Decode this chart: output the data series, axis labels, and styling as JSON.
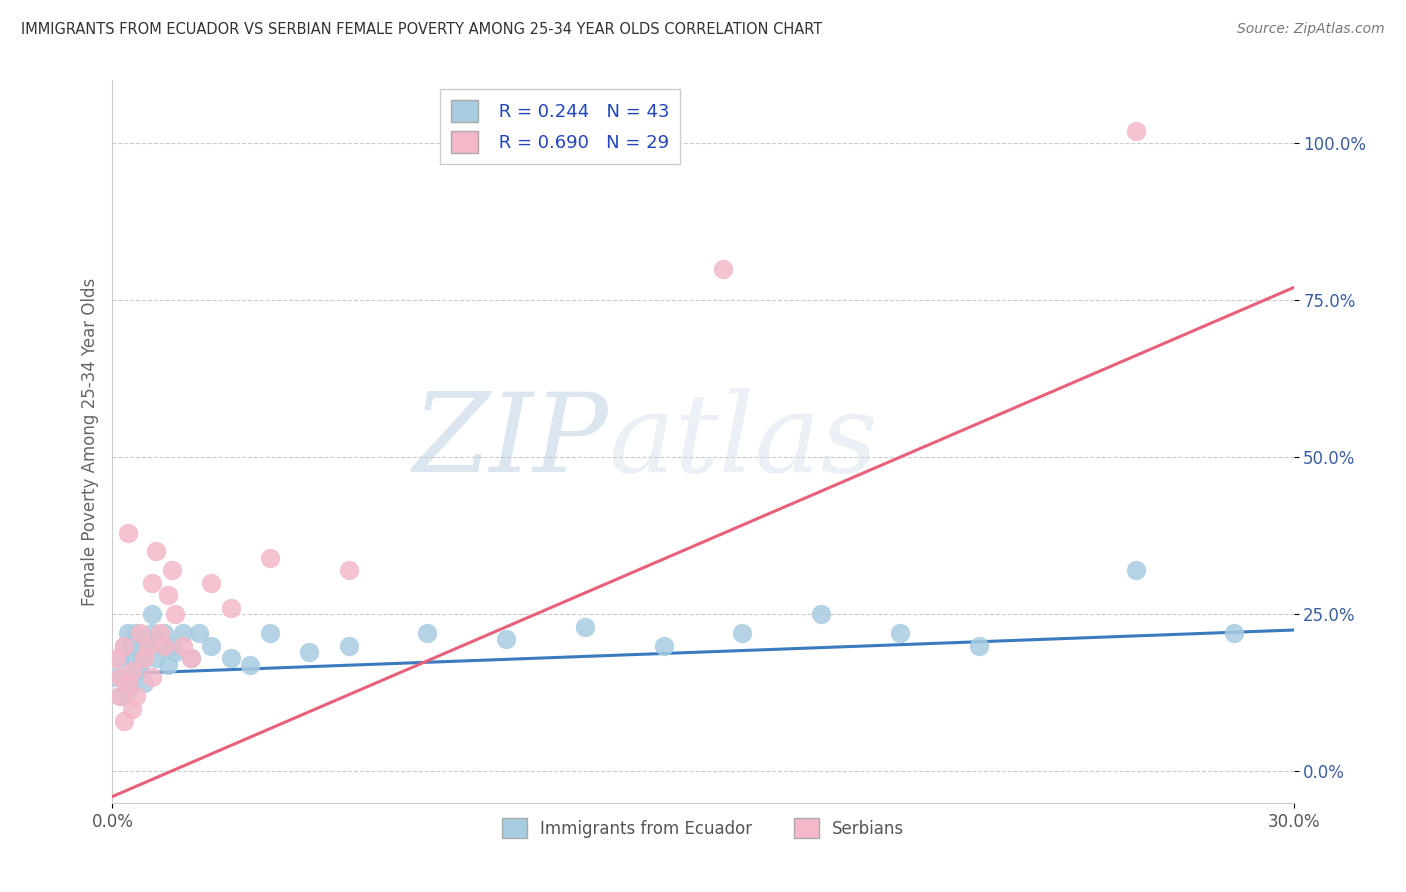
{
  "title": "IMMIGRANTS FROM ECUADOR VS SERBIAN FEMALE POVERTY AMONG 25-34 YEAR OLDS CORRELATION CHART",
  "source": "Source: ZipAtlas.com",
  "ylabel": "Female Poverty Among 25-34 Year Olds",
  "xlabel_blue": "Immigrants from Ecuador",
  "xlabel_pink": "Serbians",
  "xlim": [
    0.0,
    0.3
  ],
  "ylim": [
    -0.05,
    1.1
  ],
  "yticks": [
    0.0,
    0.25,
    0.5,
    0.75,
    1.0
  ],
  "ytick_labels": [
    "0.0%",
    "25.0%",
    "50.0%",
    "75.0%",
    "100.0%"
  ],
  "blue_R": 0.244,
  "blue_N": 43,
  "pink_R": 0.69,
  "pink_N": 29,
  "blue_color": "#a8cce0",
  "pink_color": "#f4b8c8",
  "blue_line_color": "#3a7bbf",
  "pink_line_color": "#e8607a",
  "blue_scatter_x": [
    0.001,
    0.002,
    0.002,
    0.003,
    0.003,
    0.004,
    0.004,
    0.005,
    0.005,
    0.006,
    0.006,
    0.007,
    0.007,
    0.008,
    0.008,
    0.009,
    0.01,
    0.01,
    0.011,
    0.012,
    0.013,
    0.014,
    0.015,
    0.016,
    0.018,
    0.02,
    0.022,
    0.025,
    0.03,
    0.035,
    0.04,
    0.05,
    0.06,
    0.08,
    0.1,
    0.12,
    0.14,
    0.16,
    0.18,
    0.2,
    0.22,
    0.26,
    0.285
  ],
  "blue_scatter_y": [
    0.15,
    0.18,
    0.12,
    0.2,
    0.15,
    0.22,
    0.13,
    0.18,
    0.2,
    0.16,
    0.22,
    0.19,
    0.17,
    0.21,
    0.14,
    0.2,
    0.22,
    0.25,
    0.18,
    0.2,
    0.22,
    0.17,
    0.2,
    0.19,
    0.22,
    0.18,
    0.22,
    0.2,
    0.18,
    0.17,
    0.22,
    0.19,
    0.2,
    0.22,
    0.21,
    0.23,
    0.2,
    0.22,
    0.25,
    0.22,
    0.2,
    0.32,
    0.22
  ],
  "pink_scatter_x": [
    0.001,
    0.002,
    0.002,
    0.003,
    0.003,
    0.004,
    0.004,
    0.005,
    0.005,
    0.006,
    0.007,
    0.008,
    0.009,
    0.01,
    0.01,
    0.011,
    0.012,
    0.013,
    0.014,
    0.015,
    0.016,
    0.018,
    0.02,
    0.025,
    0.03,
    0.04,
    0.06,
    0.155,
    0.26
  ],
  "pink_scatter_y": [
    0.18,
    0.15,
    0.12,
    0.2,
    0.08,
    0.38,
    0.14,
    0.1,
    0.16,
    0.12,
    0.22,
    0.18,
    0.2,
    0.15,
    0.3,
    0.35,
    0.22,
    0.2,
    0.28,
    0.32,
    0.25,
    0.2,
    0.18,
    0.3,
    0.26,
    0.34,
    0.32,
    0.8,
    1.02
  ],
  "blue_trend_x": [
    0.0,
    0.3
  ],
  "blue_trend_y": [
    0.155,
    0.225
  ],
  "pink_trend_x": [
    0.0,
    0.3
  ],
  "pink_trend_y": [
    -0.04,
    0.77
  ]
}
